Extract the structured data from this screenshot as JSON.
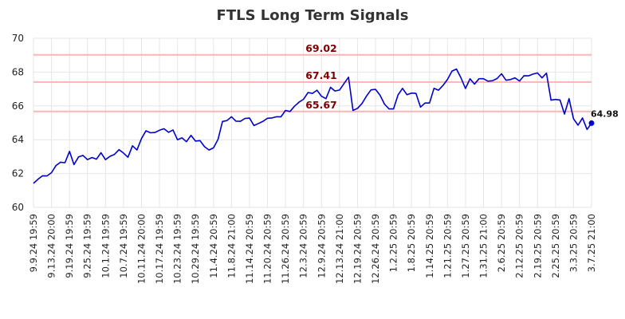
{
  "chart_data": {
    "type": "line",
    "title": "FTLS Long Term Signals",
    "xlabel": "",
    "ylabel": "",
    "ylim": [
      60,
      70
    ],
    "yticks": [
      60,
      62,
      64,
      66,
      68,
      70
    ],
    "grid": true,
    "x_tick_labels": [
      "9.9.24 19:59",
      "9.13.24 20:00",
      "9.19.24 19:59",
      "9.25.24 19:59",
      "10.1.24 19:59",
      "10.7.24 19:59",
      "10.11.24 20:00",
      "10.17.24 19:59",
      "10.23.24 19:59",
      "10.29.24 19:59",
      "11.4.24 20:59",
      "11.8.24 21:00",
      "11.14.24 20:59",
      "11.20.24 20:59",
      "11.26.24 20:59",
      "12.3.24 20:59",
      "12.9.24 20:59",
      "12.13.24 21:00",
      "12.19.24 20:59",
      "12.26.24 20:59",
      "1.2.25 20:59",
      "1.8.25 20:59",
      "1.14.25 20:59",
      "1.21.25 20:59",
      "1.27.25 20:59",
      "1.31.25 21:00",
      "2.6.25 20:59",
      "2.12.25 20:59",
      "2.19.25 20:59",
      "2.25.25 20:59",
      "3.3.25 20:59",
      "3.7.25 21:00"
    ],
    "reference_lines": [
      {
        "value": 69.02,
        "label": "69.02"
      },
      {
        "value": 67.41,
        "label": "67.41"
      },
      {
        "value": 65.67,
        "label": "65.67"
      }
    ],
    "line_color": "#0000cc",
    "ref_color": "#ffb3b3",
    "label_color": "#800000",
    "last_value_label": "64.98",
    "series": [
      {
        "values": [
          61.42,
          61.66,
          61.87,
          61.86,
          62.05,
          62.47,
          62.67,
          62.64,
          63.31,
          62.53,
          62.98,
          63.07,
          62.82,
          62.95,
          62.85,
          63.23,
          62.82,
          63.02,
          63.13,
          63.41,
          63.21,
          62.96,
          63.64,
          63.39,
          64.07,
          64.53,
          64.41,
          64.43,
          64.56,
          64.65,
          64.44,
          64.58,
          64.0,
          64.11,
          63.88,
          64.26,
          63.92,
          63.95,
          63.59,
          63.39,
          63.52,
          64.02,
          65.08,
          65.13,
          65.36,
          65.1,
          65.09,
          65.26,
          65.28,
          64.84,
          64.96,
          65.09,
          65.27,
          65.29,
          65.36,
          65.36,
          65.73,
          65.67,
          65.98,
          66.22,
          66.39,
          66.79,
          66.74,
          66.93,
          66.57,
          66.43,
          67.1,
          66.88,
          66.94,
          67.32,
          67.7,
          65.73,
          65.86,
          66.14,
          66.58,
          66.95,
          66.98,
          66.63,
          66.11,
          65.82,
          65.82,
          66.65,
          67.04,
          66.66,
          66.76,
          66.74,
          65.93,
          66.17,
          66.17,
          67.04,
          66.93,
          67.21,
          67.57,
          68.06,
          68.18,
          67.65,
          67.03,
          67.61,
          67.29,
          67.61,
          67.61,
          67.46,
          67.49,
          67.62,
          67.9,
          67.52,
          67.56,
          67.66,
          67.47,
          67.79,
          67.78,
          67.88,
          67.95,
          67.66,
          67.94,
          66.34,
          66.38,
          66.35,
          65.52,
          66.43,
          65.24,
          64.86,
          65.29,
          64.61,
          64.98
        ]
      }
    ]
  }
}
